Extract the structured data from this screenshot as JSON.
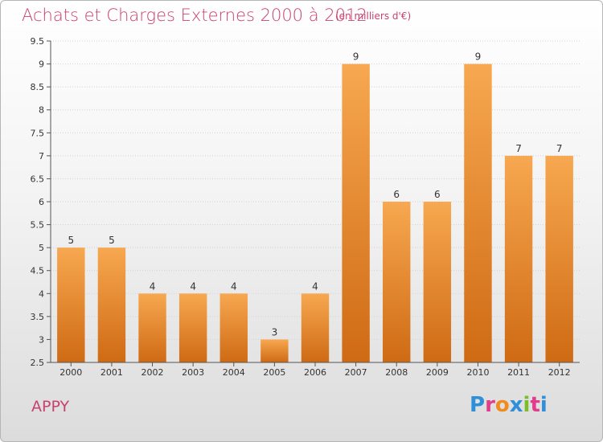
{
  "title": "Achats et Charges Externes 2000 à 2012",
  "subtitle": "(en milliers d'€)",
  "commune": "APPY",
  "logo": {
    "letters": [
      "P",
      "r",
      "o",
      "x",
      "i",
      "t",
      "i"
    ],
    "colors": [
      "#2f8fd8",
      "#e23d8c",
      "#f08c1e",
      "#2f8fd8",
      "#7cbd2c",
      "#e23d8c",
      "#2f8fd8"
    ]
  },
  "colors": {
    "bar_top": "#f7a850",
    "bar_bottom": "#cf6a14",
    "title": "#c8426e"
  },
  "chart_data": {
    "type": "bar",
    "title": "Achats et Charges Externes 2000 à 2012",
    "subtitle": "(en milliers d'€)",
    "categories": [
      "2000",
      "2001",
      "2002",
      "2003",
      "2004",
      "2005",
      "2006",
      "2007",
      "2008",
      "2009",
      "2010",
      "2011",
      "2012"
    ],
    "values": [
      5,
      5,
      4,
      4,
      4,
      3,
      4,
      9,
      6,
      6,
      9,
      7,
      7
    ],
    "ylim": [
      2.5,
      9.5
    ],
    "yticks": [
      "2.5",
      "3",
      "3.5",
      "4",
      "4.5",
      "5",
      "5.5",
      "6",
      "6.5",
      "7",
      "7.5",
      "8",
      "8.5",
      "9",
      "9.5"
    ],
    "grid": true
  }
}
